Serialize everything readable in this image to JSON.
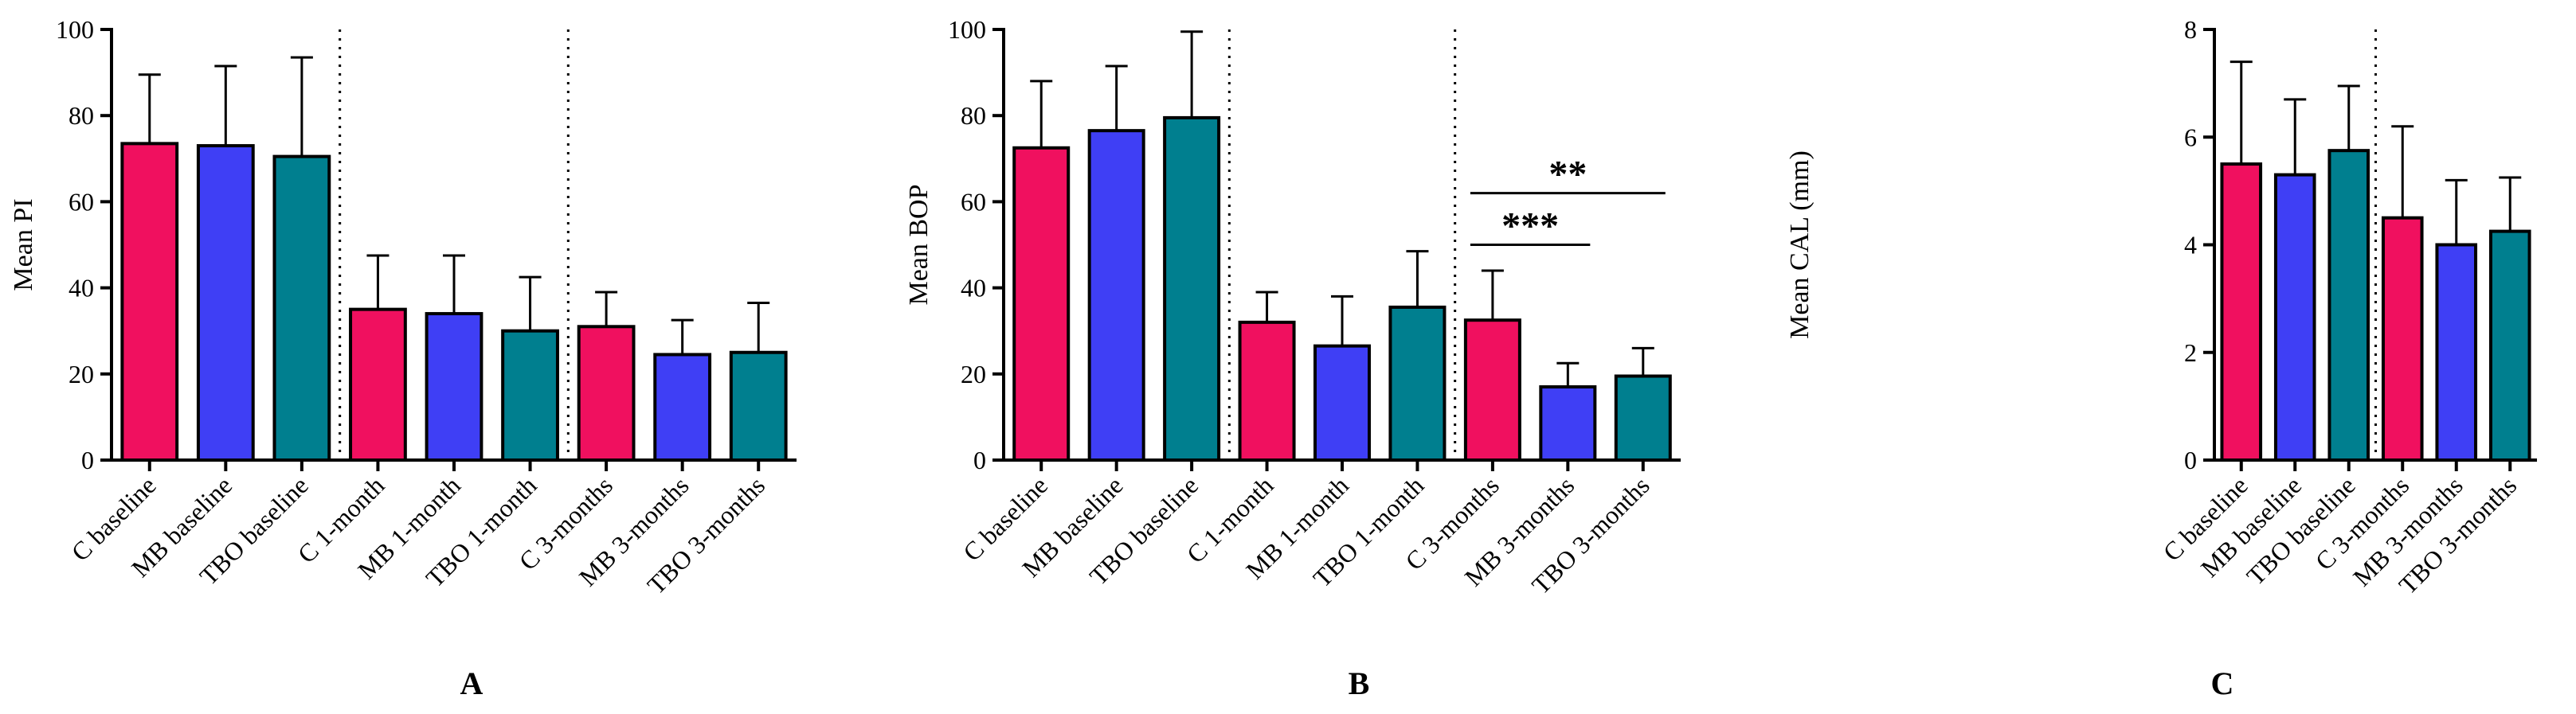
{
  "colors": {
    "c": "#f0105f",
    "mb": "#3f3ff5",
    "tbo": "#007f8f"
  },
  "chart_data": [
    {
      "type": "bar",
      "panel": "A",
      "ylabel": "Mean PI",
      "ylim": [
        0,
        100
      ],
      "yticks": [
        0,
        20,
        40,
        60,
        80,
        100
      ],
      "categories": [
        "C baseline",
        "MB baseline",
        "TBO baseline",
        "C 1-month",
        "MB 1-month",
        "TBO 1-month",
        "C 3-months",
        "MB 3-months",
        "TBO 3-months"
      ],
      "groups": [
        "c",
        "mb",
        "tbo",
        "c",
        "mb",
        "tbo",
        "c",
        "mb",
        "tbo"
      ],
      "values": [
        73.5,
        73,
        70.5,
        35,
        34,
        30,
        31,
        24.5,
        25
      ],
      "errors": [
        16,
        18.5,
        23,
        12.5,
        13.5,
        12.5,
        8,
        8,
        11.5
      ],
      "separators_after": [
        3,
        6
      ],
      "significance": []
    },
    {
      "type": "bar",
      "panel": "B",
      "ylabel": "Mean BOP",
      "ylim": [
        0,
        100
      ],
      "yticks": [
        0,
        20,
        40,
        60,
        80,
        100
      ],
      "categories": [
        "C baseline",
        "MB baseline",
        "TBO baseline",
        "C 1-month",
        "MB 1-month",
        "TBO 1-month",
        "C 3-months",
        "MB 3-months",
        "TBO 3-months"
      ],
      "groups": [
        "c",
        "mb",
        "tbo",
        "c",
        "mb",
        "tbo",
        "c",
        "mb",
        "tbo"
      ],
      "values": [
        72.5,
        76.5,
        79.5,
        32,
        26.5,
        35.5,
        32.5,
        17,
        19.5
      ],
      "errors": [
        15.5,
        15,
        20,
        7,
        11.5,
        13,
        11.5,
        5.5,
        6.5
      ],
      "separators_after": [
        3,
        6
      ],
      "significance": [
        {
          "from": 6,
          "to": 7,
          "label": "***",
          "y": 50
        },
        {
          "from": 6,
          "to": 8,
          "label": "**",
          "y": 62
        }
      ]
    },
    {
      "type": "bar",
      "panel": "C",
      "ylabel": "Mean CAL (mm)",
      "ylim": [
        0,
        8
      ],
      "yticks": [
        0,
        2,
        4,
        6,
        8
      ],
      "categories": [
        "C baseline",
        "MB baseline",
        "TBO baseline",
        "C 3-months",
        "MB 3-months",
        "TBO 3-months"
      ],
      "groups": [
        "c",
        "mb",
        "tbo",
        "c",
        "mb",
        "tbo"
      ],
      "values": [
        5.5,
        5.3,
        5.75,
        4.5,
        4,
        4.25
      ],
      "errors": [
        1.9,
        1.4,
        1.2,
        1.7,
        1.2,
        1.0
      ],
      "separators_after": [
        3
      ],
      "significance": []
    }
  ]
}
